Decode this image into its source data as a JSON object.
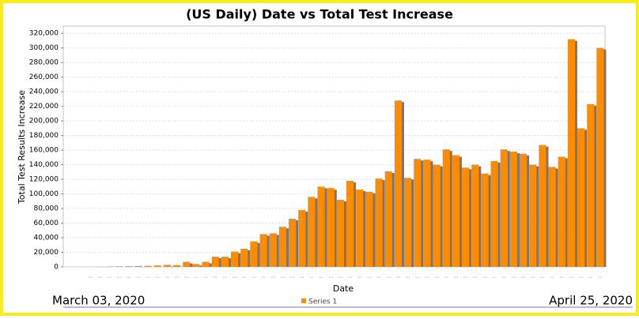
{
  "chart_data": {
    "type": "bar",
    "title": "(US Daily) Date vs Total Test Increase",
    "x_label": "Date",
    "y_label": "Total Test Results Increase",
    "annotations": [
      "March 03, 2020",
      "April 25, 2020"
    ],
    "categories": [
      "...",
      "...",
      "...",
      "...",
      "...",
      "...",
      "...",
      "...",
      "...",
      "...",
      "...",
      "...",
      "...",
      "...",
      "...",
      "...",
      "...",
      "...",
      "...",
      "...",
      "...",
      "...",
      "...",
      "...",
      "...",
      "...",
      "...",
      "...",
      "...",
      "...",
      "...",
      "...",
      "...",
      "...",
      "...",
      "...",
      "...",
      "...",
      "...",
      "...",
      "...",
      "...",
      "...",
      "...",
      "...",
      "...",
      "...",
      "...",
      "...",
      "...",
      "...",
      "...",
      "...",
      "..."
    ],
    "series": [
      {
        "name": "Series 1",
        "color": "#ff8c00",
        "values": [
          100,
          200,
          500,
          700,
          900,
          1200,
          1500,
          1900,
          2800,
          2500,
          7000,
          4000,
          7000,
          14000,
          14000,
          21000,
          25000,
          35000,
          45000,
          46000,
          55000,
          66000,
          78000,
          96000,
          110000,
          108000,
          92000,
          118000,
          106000,
          103000,
          121000,
          131000,
          228000,
          122000,
          148000,
          147000,
          140000,
          161000,
          153000,
          136000,
          140000,
          128000,
          145000,
          161000,
          158000,
          155000,
          140000,
          167000,
          137000,
          151000,
          312000,
          190000,
          223000,
          300000
        ]
      }
    ],
    "ylim": [
      0,
      330000
    ],
    "yticks": [
      0,
      {
        "value": 20000,
        "label": "20,000"
      },
      {
        "value": 40000,
        "label": "40,000"
      },
      {
        "value": 60000,
        "label": "60,000"
      },
      {
        "value": 80000,
        "label": "80,000"
      },
      {
        "value": 100000,
        "label": "100,000"
      },
      {
        "value": 120000,
        "label": "120,000"
      },
      {
        "value": 140000,
        "label": "140,000"
      },
      {
        "value": 160000,
        "label": "160,000"
      },
      {
        "value": 180000,
        "label": "180,000"
      },
      {
        "value": 200000,
        "label": "200,000"
      },
      {
        "value": 220000,
        "label": "220,000"
      },
      {
        "value": 240000,
        "label": "240,000"
      },
      {
        "value": 260000,
        "label": "260,000"
      },
      {
        "value": 280000,
        "label": "280,000"
      },
      {
        "value": 300000,
        "label": "300,000"
      },
      {
        "value": 320000,
        "label": "320,000"
      }
    ],
    "grid": true
  }
}
